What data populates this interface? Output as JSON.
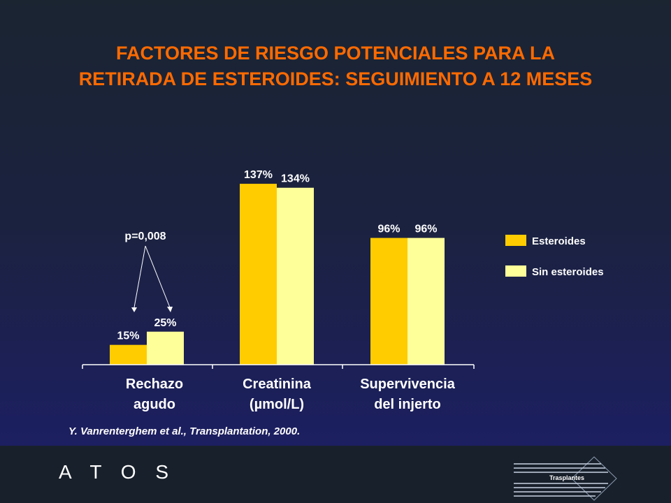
{
  "slide": {
    "title_line1": "FACTORES DE RIESGO POTENCIALES PARA LA",
    "title_line2": "RETIRADA DE ESTEROIDES: SEGUIMIENTO A 12 MESES",
    "citation": "Y. Vanrenterghem et al., Transplantation, 2000.",
    "brand": "A T O S",
    "logo_text": "Trasplantes",
    "annotation": "p=0,008",
    "title_color": "#ff6a00"
  },
  "chart_data": {
    "type": "bar",
    "categories": [
      [
        "Rechazo",
        "agudo"
      ],
      [
        "Creatinina",
        "(µmol/L)"
      ],
      [
        "Supervivencia",
        "del injerto"
      ]
    ],
    "series": [
      {
        "name": "Esteroides",
        "values": [
          15,
          137,
          96
        ],
        "labels": [
          "15%",
          "137%",
          "96%"
        ],
        "color": "#ffcc00"
      },
      {
        "name": "Sin esteroides",
        "values": [
          25,
          134,
          96
        ],
        "labels": [
          "25%",
          "134%",
          "96%"
        ],
        "color": "#ffff99"
      }
    ],
    "ylim": [
      0,
      150
    ],
    "grid": false,
    "legend_position": "right"
  }
}
